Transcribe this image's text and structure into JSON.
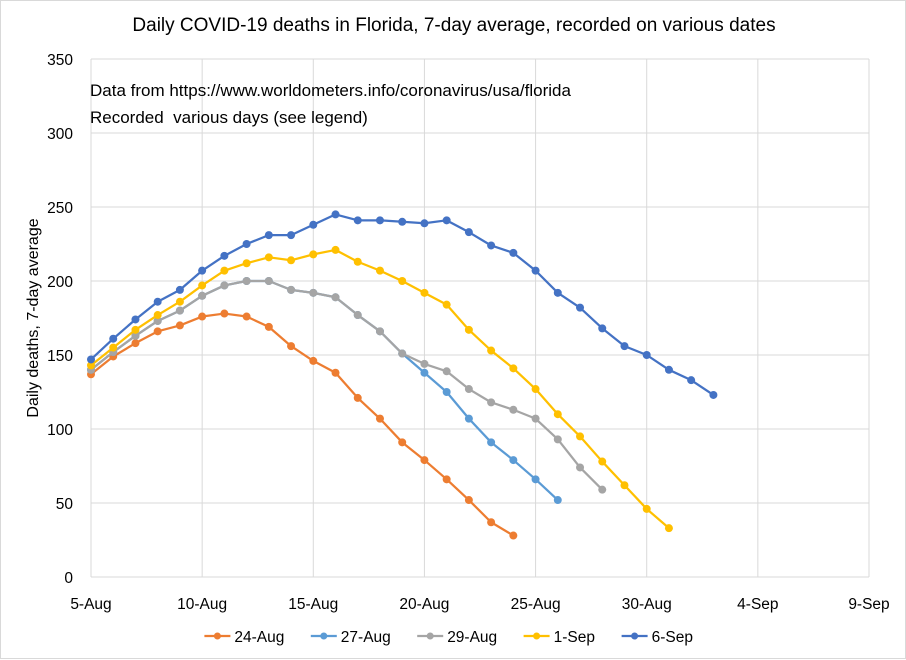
{
  "chart_data": {
    "type": "line",
    "title": "Daily COVID-19 deaths in Florida, 7-day average, recorded on various dates",
    "xlabel": "",
    "ylabel": "Daily deaths, 7-day average",
    "ylim": [
      0,
      350
    ],
    "yticks": [
      0,
      50,
      100,
      150,
      200,
      250,
      300,
      350
    ],
    "xlim_days_from_5aug": [
      0,
      35
    ],
    "xtick_labels": [
      "5-Aug",
      "10-Aug",
      "15-Aug",
      "20-Aug",
      "25-Aug",
      "30-Aug",
      "4-Sep",
      "9-Sep"
    ],
    "xtick_step_days": 5,
    "grid": true,
    "legend_position": "bottom",
    "annotations": [
      "Data from https://www.worldometers.info/coronavirus/usa/florida",
      "Recorded  various days (see legend)"
    ],
    "x_start_label": "5-Aug",
    "series": [
      {
        "name": "24-Aug",
        "color": "#ED7D31",
        "start_day": 0,
        "values": [
          137,
          149,
          158,
          166,
          170,
          176,
          178,
          176,
          169,
          156,
          146,
          138,
          121,
          107,
          91,
          79,
          66,
          52,
          37,
          28
        ]
      },
      {
        "name": "27-Aug",
        "color": "#5B9BD5",
        "start_day": 0,
        "values": [
          140,
          152,
          163,
          173,
          180,
          190,
          197,
          200,
          200,
          194,
          192,
          189,
          177,
          166,
          151,
          138,
          125,
          107,
          91,
          79,
          66,
          52
        ]
      },
      {
        "name": "29-Aug",
        "color": "#A5A5A5",
        "start_day": 0,
        "values": [
          140,
          152,
          163,
          173,
          180,
          190,
          197,
          200,
          200,
          194,
          192,
          189,
          177,
          166,
          151,
          144,
          139,
          127,
          118,
          113,
          107,
          93,
          74,
          59
        ]
      },
      {
        "name": "1-Sep",
        "color": "#FFC000",
        "start_day": 0,
        "values": [
          143,
          155,
          167,
          177,
          186,
          197,
          207,
          212,
          216,
          214,
          218,
          221,
          213,
          207,
          200,
          192,
          184,
          167,
          153,
          141,
          127,
          110,
          95,
          78,
          62,
          46,
          33
        ]
      },
      {
        "name": "6-Sep",
        "color": "#4472C4",
        "start_day": 0,
        "values": [
          147,
          161,
          174,
          186,
          194,
          207,
          217,
          225,
          231,
          231,
          238,
          245,
          241,
          241,
          240,
          239,
          241,
          233,
          224,
          219,
          207,
          192,
          182,
          168,
          156,
          150,
          140,
          133,
          123
        ]
      }
    ]
  }
}
